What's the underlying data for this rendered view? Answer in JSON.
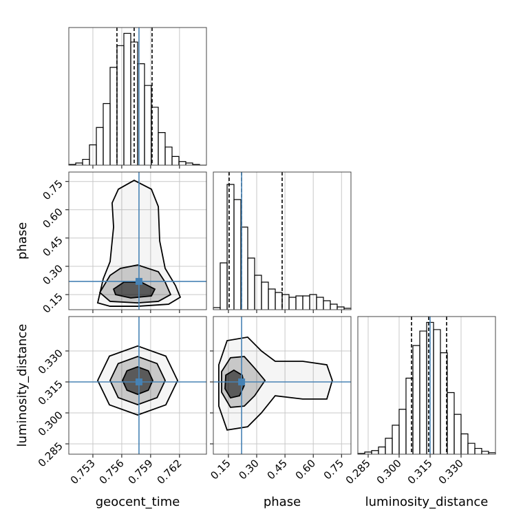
{
  "chart_data": {
    "type": "corner",
    "grid": true,
    "hist_color": "#000000",
    "truth_color": "#4682b4",
    "contour_color": "#000000",
    "parameters": [
      {
        "label": "geocent_time",
        "lim": [
          0.7505,
          0.7648
        ],
        "ticks": [
          0.753,
          0.756,
          0.759,
          0.762
        ],
        "truth": 0.75779,
        "quantiles": [
          0.7555,
          0.75729,
          0.75915
        ],
        "hist": {
          "ylim": [
            0,
            190
          ],
          "bins": [
            0.7505,
            0.751215,
            0.75193,
            0.752645,
            0.75336,
            0.754075,
            0.75479,
            0.755505,
            0.75622,
            0.756935,
            0.75765,
            0.758365,
            0.75908,
            0.759795,
            0.76051,
            0.761225,
            0.76194,
            0.762655,
            0.76337,
            0.764085,
            0.7648
          ],
          "counts": [
            1,
            3,
            8,
            28,
            52,
            85,
            135,
            165,
            182,
            170,
            140,
            110,
            80,
            45,
            25,
            12,
            5,
            3,
            1,
            0
          ]
        }
      },
      {
        "label": "phase",
        "lim": [
          0.07,
          0.8
        ],
        "ticks": [
          0.15,
          {
            "value": 0.3,
            "label": "0.30"
          },
          0.45,
          {
            "value": 0.6,
            "label": "0.60"
          },
          0.75
        ],
        "truth": 0.22,
        "quantiles": [
          0.154,
          0.22,
          0.435
        ],
        "hist": {
          "ylim": [
            0,
            200
          ],
          "bins": [
            0.07,
            0.1065,
            0.143,
            0.1795,
            0.216,
            0.2525,
            0.289,
            0.3255,
            0.362,
            0.3985,
            0.435,
            0.4715,
            0.508,
            0.5445,
            0.581,
            0.6175,
            0.654,
            0.6905,
            0.727,
            0.7635,
            0.8
          ],
          "counts": [
            3,
            68,
            182,
            160,
            120,
            75,
            50,
            40,
            30,
            25,
            22,
            18,
            20,
            20,
            22,
            18,
            13,
            8,
            4,
            2
          ]
        }
      },
      {
        "label": "luminosity_distance",
        "lim": [
          0.28,
          0.34667
        ],
        "ticks": [
          0.285,
          {
            "value": 0.3,
            "label": "0.300"
          },
          0.315,
          {
            "value": 0.33,
            "label": "0.330"
          }
        ],
        "truth": 0.315,
        "quantiles": [
          0.306,
          0.3143,
          0.323
        ],
        "hist": {
          "ylim": [
            0,
            190
          ],
          "bins": [
            0.28,
            0.28333,
            0.28667,
            0.29,
            0.29333,
            0.29667,
            0.3,
            0.30333,
            0.30667,
            0.31,
            0.31333,
            0.31667,
            0.32,
            0.32333,
            0.32667,
            0.33,
            0.33333,
            0.33667,
            0.34,
            0.34333,
            0.34667
          ],
          "counts": [
            1,
            3,
            5,
            10,
            22,
            40,
            62,
            105,
            150,
            170,
            182,
            172,
            140,
            85,
            55,
            28,
            15,
            8,
            4,
            2
          ]
        }
      }
    ],
    "pairs": [
      {
        "x": 0,
        "y": 1,
        "contours": [
          {
            "x": [
              0.7535,
              0.75408,
              0.75479,
              0.75515,
              0.755,
              0.75565,
              0.75729,
              0.75908,
              0.7598,
              0.75994,
              0.76051,
              0.76158,
              0.76208,
              0.76087,
              0.75765,
              0.75479
            ],
            "y": [
              0.106,
              0.234,
              0.325,
              0.508,
              0.636,
              0.709,
              0.756,
              0.709,
              0.617,
              0.435,
              0.289,
              0.198,
              0.136,
              0.099,
              0.088,
              0.088
            ]
          },
          {
            "x": [
              0.75372,
              0.75479,
              0.75586,
              0.75765,
              0.7598,
              0.76051,
              0.76108,
              0.7598,
              0.75765,
              0.75479
            ],
            "y": [
              0.161,
              0.252,
              0.289,
              0.307,
              0.271,
              0.216,
              0.15,
              0.114,
              0.106,
              0.114
            ]
          },
          {
            "x": [
              0.75515,
              0.75622,
              0.75801,
              0.75944,
              0.75908,
              0.75694,
              0.75536
            ],
            "y": [
              0.179,
              0.216,
              0.216,
              0.179,
              0.143,
              0.132,
              0.15
            ]
          }
        ]
      },
      {
        "x": 0,
        "y": 2,
        "contours": [
          {
            "x": [
              0.7618,
              0.76058,
              0.75765,
              0.75472,
              0.7535,
              0.75472,
              0.75765,
              0.76058
            ],
            "y": [
              0.3157,
              0.3275,
              0.3324,
              0.3275,
              0.3157,
              0.3039,
              0.299,
              0.3039
            ]
          },
          {
            "x": [
              0.76051,
              0.75967,
              0.75765,
              0.75563,
              0.75479,
              0.75563,
              0.75765,
              0.75967
            ],
            "y": [
              0.3157,
              0.3239,
              0.3273,
              0.3239,
              0.3157,
              0.3074,
              0.304,
              0.3074
            ]
          },
          {
            "x": [
              0.75922,
              0.75876,
              0.75765,
              0.75654,
              0.75608,
              0.75654,
              0.75765,
              0.75876
            ],
            "y": [
              0.3157,
              0.3204,
              0.3223,
              0.3204,
              0.3157,
              0.311,
              0.309,
              0.311
            ]
          }
        ]
      },
      {
        "x": 1,
        "y": 2,
        "contours": [
          {
            "x": [
              0.099,
              0.143,
              0.252,
              0.325,
              0.398,
              0.544,
              0.672,
              0.701,
              0.672,
              0.544,
              0.398,
              0.325,
              0.252,
              0.143,
              0.099
            ],
            "y": [
              0.3233,
              0.335,
              0.3367,
              0.33,
              0.325,
              0.325,
              0.3233,
              0.3157,
              0.3067,
              0.3067,
              0.3083,
              0.3,
              0.2933,
              0.2917,
              0.3033
            ]
          },
          {
            "x": [
              0.114,
              0.161,
              0.234,
              0.289,
              0.344,
              0.289,
              0.234,
              0.161,
              0.114
            ],
            "y": [
              0.32,
              0.3267,
              0.3273,
              0.3217,
              0.3157,
              0.3083,
              0.3033,
              0.3027,
              0.31
            ]
          },
          {
            "x": [
              0.136,
              0.179,
              0.223,
              0.234,
              0.209,
              0.161,
              0.132
            ],
            "y": [
              0.3183,
              0.3207,
              0.3183,
              0.3133,
              0.3083,
              0.3073,
              0.3117
            ]
          }
        ]
      }
    ]
  }
}
